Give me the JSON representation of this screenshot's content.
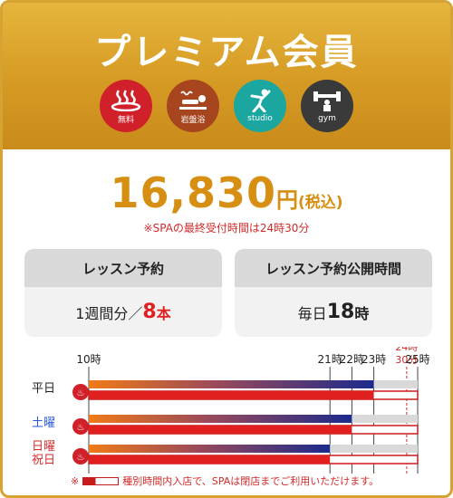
{
  "title": "プレミアム会員",
  "amenities": [
    {
      "name": "hot-spring",
      "label": "無料",
      "color": "#d0202a",
      "icon": "hot-spring-icon"
    },
    {
      "name": "bedrock-bath",
      "label": "岩盤浴",
      "color": "#a7461e",
      "icon": "bedrock-bath-icon"
    },
    {
      "name": "studio",
      "label": "studio",
      "color": "#1ba6a0",
      "icon": "studio-icon"
    },
    {
      "name": "gym",
      "label": "gym",
      "color": "#3a3a3a",
      "icon": "dumbbell-icon"
    }
  ],
  "price": {
    "amount": "16,830",
    "unit": "円",
    "tax": "(税込)"
  },
  "note_top": "※SPAの最終受付時間は24時30分",
  "lesson_booking": {
    "title": "レッスン予約",
    "value_prefix": "1週間分／",
    "value_num": "8",
    "value_unit": "本"
  },
  "lesson_open": {
    "title": "レッスン予約公開時間",
    "value_prefix": "毎日",
    "value_num": "18",
    "value_unit": "時"
  },
  "schedule": {
    "hour_labels": [
      {
        "text": "10時",
        "hour": 10
      },
      {
        "text": "21時",
        "hour": 21
      },
      {
        "text": "22時",
        "hour": 22
      },
      {
        "text": "23時",
        "hour": 23
      },
      {
        "text": "24時",
        "sub": "30分",
        "hour": 24.5,
        "highlight": true
      },
      {
        "text": "25時",
        "hour": 25
      }
    ],
    "rows": [
      {
        "label": "平日",
        "color": "#222222",
        "lesson_end": 23,
        "spa_end": 23,
        "spa_outline_end": 25
      },
      {
        "label": "土曜",
        "color": "#2a5ad6",
        "lesson_end": 22,
        "spa_end": 22,
        "spa_outline_end": 25
      },
      {
        "label": "日曜\n祝日",
        "color": "#d12a2a",
        "lesson_end": 21,
        "spa_end": 21,
        "spa_outline_end": 25
      }
    ],
    "axis_start": 10,
    "axis_end": 25
  },
  "footnote": {
    "prefix": "※",
    "text": "種別時間内入店で、SPAは閉店までご利用いただけます。"
  }
}
